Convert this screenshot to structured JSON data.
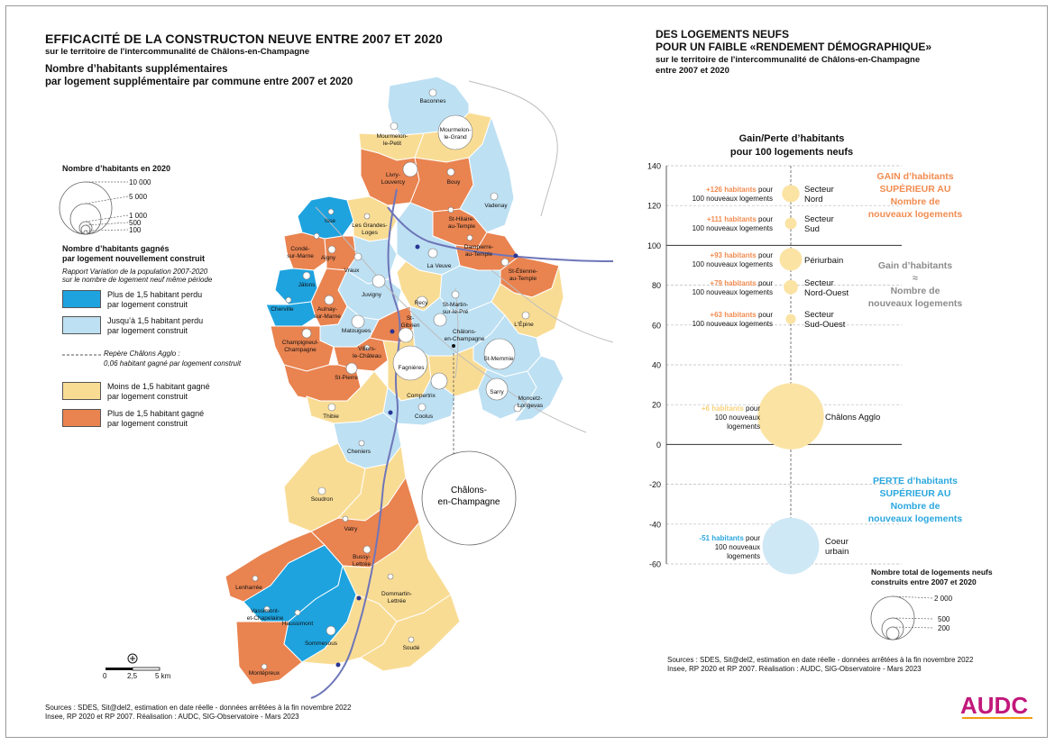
{
  "left": {
    "title": "EFFICACITÉ DE LA CONSTRUCTON NEUVE ENTRE 2007 ET 2020",
    "subtitle": "sur le territoire de l'intercommunalité de Châlons-en-Champagne",
    "map_title_line1": "Nombre d’habitants supplémentaires",
    "map_title_line2": "par logement supplémentaire par commune entre 2007 et 2020",
    "legend_pop_title": "Nombre d’habitants en 2020",
    "legend_pop_values": [
      "10 000",
      "5 000",
      "1 000",
      "500",
      "100"
    ],
    "legend_gain_title_1": "Nombre d’habitants gagnés",
    "legend_gain_title_2": "par logement nouvellement construit",
    "legend_gain_note_1": "Rapport Variation de la population 2007-2020",
    "legend_gain_note_2": "sur le nombre de logement neuf même période",
    "classes": [
      {
        "line1": "Plus de 1,5 habitant perdu",
        "line2": "par logement construit",
        "color": "#1ea3df"
      },
      {
        "line1": "Jusqu’à 1,5 habitant perdu",
        "line2": "par logement construit",
        "color": "#bde0f3"
      },
      {
        "line1": "Moins de 1,5 habitant gagné",
        "line2": "par logement construit",
        "color": "#f9dc94"
      },
      {
        "line1": "Plus de 1,5 habitant gagné",
        "line2": "par logement construit",
        "color": "#e98350"
      }
    ],
    "repere_line1": "Repère Châlons Agglo :",
    "repere_line2": "0,06 habitant gagné par logement construit",
    "scale": {
      "v0": "0",
      "v1": "2,5",
      "v2": "5 km"
    },
    "sources_line1": "Sources : SDES, Sit@del2, estimation en date réelle - données arrêtées à la fin novembre 2022",
    "sources_line2": "Insee, RP 2020 et RP 2007. Réalisation : AUDC, SIG-Observatoire - Mars 2023",
    "chalons_label_1": "Châlons-",
    "chalons_label_2": "en-Champagne"
  },
  "communes": {
    "baconnes": "Baconnes",
    "mourmelon_petit_1": "Mourmelon-",
    "mourmelon_petit_2": "le-Petit",
    "mourmelon_grand_1": "Mourmelon-",
    "mourmelon_grand_2": "le-Grand",
    "livry_1": "Livry-",
    "livry_2": "Louvercy",
    "bouy": "Bouy",
    "vadenay": "Vadenay",
    "isse": "Isse",
    "grandes_loges_1": "Les Grandes-",
    "grandes_loges_2": "Loges",
    "st_hilaire_1": "St-Hilaire-",
    "st_hilaire_2": "au-Temple",
    "dampierre_1": "Dampierre-",
    "dampierre_2": "au-Temple",
    "conde_1": "Condé-",
    "conde_2": "sur-Marne",
    "aigny": "Aigny",
    "vraux": "Vraux",
    "la_veuve": "La Veuve",
    "st_etienne_1": "St-Étienne-",
    "st_etienne_2": "au-Temple",
    "jalons": "Jâlons",
    "juvigny": "Juvigny",
    "recy": "Recy",
    "cherville": "Cherville",
    "aulnay_1": "Aulnay-",
    "aulnay_2": "sur-Marne",
    "st_martin_1": "St-Martin-",
    "st_martin_2": "sur-le-Pré",
    "lepine": "L'Épine",
    "st_gibrien_1": "St-",
    "st_gibrien_2": "Gibrien",
    "matougues": "Matougues",
    "chalons_1": "Châlons-",
    "chalons_2": "en-Champagne",
    "champigneul_1": "Champigneul-",
    "champigneul_2": "Champagne",
    "villers_1": "Villers-",
    "villers_2": "le-Château",
    "st_memmie": "St-Memmie",
    "st_pierre": "St-Pierre",
    "fagnieres": "Fagnières",
    "compertrix": "Compertrix",
    "sarry": "Sarry",
    "moncetz_1": "Moncetz-",
    "moncetz_2": "Longevas",
    "thibie": "Thibie",
    "coolus": "Coolus",
    "cheniers": "Cheniers",
    "soudron": "Soudron",
    "vatry": "Vatry",
    "bussy_1": "Bussy-",
    "bussy_2": "Lettrée",
    "lenharree": "Lenharrée",
    "dommartin_1": "Dommartin-",
    "dommartin_2": "Lettrée",
    "vassimont_1": "Vassimont-",
    "vassimont_2": "et-Chapelaine",
    "haussimont": "Haussimont",
    "sommesous": "Sommesous",
    "soude": "Soudé",
    "montepreux": "Montépreux"
  },
  "right": {
    "title_line1": "DES LOGEMENTS NEUFS",
    "title_line2": "POUR UN FAIBLE «RENDEMENT DÉMOGRAPHIQUE»",
    "subtitle_line1": "sur le territoire de l'intercommunalité de Châlons-en-Champagne",
    "subtitle_line2": "entre 2007 et 2020",
    "chart_title_1": "Gain/Perte d’habitants",
    "chart_title_2": "pour 100 logements neufs",
    "gain_text_1": "GAIN d’habitants",
    "gain_text_2": "SUPÉRIEUR AU",
    "gain_text_3": "Nombre de",
    "gain_text_4": "nouveaux logements",
    "eq_text_1": "Gain d’habitants",
    "eq_text_2": "≈",
    "eq_text_3": "Nombre de",
    "eq_text_4": "nouveaux logements",
    "loss_text_1": "PERTE d’habitants",
    "loss_text_2": "SUPÉRIEUR AU",
    "loss_text_3": "Nombre de",
    "loss_text_4": "nouveaux logements",
    "bubble_legend_title_1": "Nombre total de logements neufs",
    "bubble_legend_title_2": "construits entre 2007 et 2020",
    "bubble_legend_values": [
      "2 000",
      "500",
      "200"
    ],
    "sources_line1": "Sources : SDES, Sit@del2, estimation en date réelle - données arrêtées à la fin novembre 2022",
    "sources_line2": "Insee, RP 2020 et RP 2007. Réalisation : AUDC, SIG-Observatoire - Mars 2023",
    "logo": "AUDC",
    "colors": {
      "gain": "#f28c50",
      "equal": "#8c8c8c",
      "loss": "#2aa7de",
      "bubble_gain": "#fbe3a4",
      "bubble_loss": "#cfe8f6"
    }
  },
  "chart_data": {
    "type": "scatter",
    "title": "Gain/Perte d’habitants pour 100 logements neufs",
    "ylim": [
      -60,
      140
    ],
    "yticks": [
      140,
      120,
      100,
      80,
      60,
      40,
      20,
      0,
      -20,
      -40,
      -60
    ],
    "grid": true,
    "points": [
      {
        "name_1": "Secteur",
        "name_2": "Nord",
        "y": 126,
        "value_text": "+126 habitants",
        "suffix": "pour",
        "note": "100 nouveaux logements",
        "logements": 180
      },
      {
        "name_1": "Secteur",
        "name_2": "Sud",
        "y": 111,
        "value_text": "+111 habitants",
        "suffix": "pour",
        "note": "100 nouveaux logements",
        "logements": 80
      },
      {
        "name_1": "Périurbain",
        "name_2": "",
        "y": 93,
        "value_text": "+93 habitants",
        "suffix": "pour",
        "note": "100 nouveaux logements",
        "logements": 300
      },
      {
        "name_1": "Secteur",
        "name_2": "Nord-Ouest",
        "y": 79,
        "value_text": "+79 habitants",
        "suffix": "pour",
        "note": "100 nouveaux logements",
        "logements": 120
      },
      {
        "name_1": "Secteur",
        "name_2": "Sud-Ouest",
        "y": 63,
        "value_text": "+63 habitants",
        "suffix": "pour",
        "note": "100 nouveaux logements",
        "logements": 60
      },
      {
        "name_1": "Châlons Agglo",
        "name_2": "",
        "y": 6,
        "value_text": "+6 habitants",
        "suffix": "pour",
        "note": "100 nouveaux logements",
        "logements": 2600
      },
      {
        "name_1": "Coeur",
        "name_2": "urbain",
        "y": -51,
        "value_text": "-51 habitants",
        "suffix": "pour",
        "note": "100 nouveaux logements",
        "logements": 1900
      }
    ]
  }
}
